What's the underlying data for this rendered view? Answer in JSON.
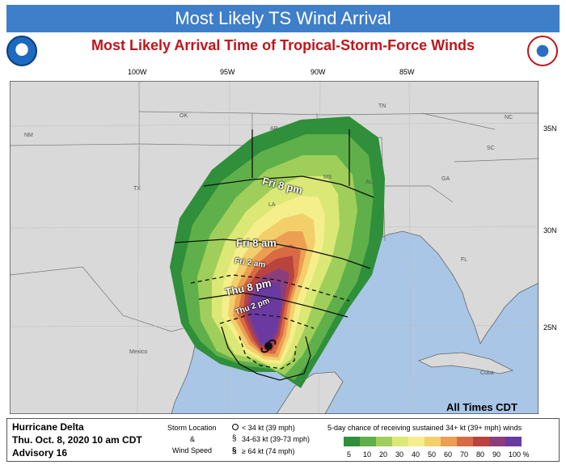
{
  "banner_title": "Most Likely TS Wind Arrival",
  "subtitle": "Most Likely Arrival Time of Tropical-Storm-Force Winds",
  "longitudes": [
    "100W",
    "95W",
    "90W",
    "85W"
  ],
  "latitudes": [
    "35N",
    "30N",
    "25N"
  ],
  "states": [
    "NM",
    "TX",
    "OK",
    "AR",
    "LA",
    "MS",
    "AL",
    "TN",
    "GA",
    "SC",
    "NC",
    "FL"
  ],
  "places": [
    "Mexico",
    "Cuba"
  ],
  "contour_labels": {
    "fri_8pm": "Fri 8 pm",
    "fri_8am": "Fri 8 am",
    "fri_2am": "Fri 2 am",
    "thu_8pm": "Thu 8 pm",
    "thu_2pm": "Thu 2 pm"
  },
  "all_times": "All Times CDT",
  "storm_info": {
    "name": "Hurricane Delta",
    "datetime": "Thu. Oct. 8, 2020  10 am CDT",
    "advisory": "Advisory 16"
  },
  "storm_legend": {
    "label1": "Storm Location",
    "label2": "&",
    "label3": "Wind Speed",
    "items": [
      "< 34 kt (39 mph)",
      "34-63 kt (39-73 mph)",
      "≥ 64 kt (74 mph)"
    ]
  },
  "chance_title": "5-day chance of receiving sustained 34+ kt (39+ mph) winds",
  "chance_scale": [
    "5",
    "10",
    "20",
    "30",
    "40",
    "50",
    "60",
    "70",
    "80",
    "90",
    "100 %"
  ],
  "colors": {
    "banner": "#3f7fc9",
    "subtitle": "#c0141a",
    "land": "#d9d9d9",
    "water": "#a9c6e6",
    "scale": [
      "#2f8f3a",
      "#5fb04a",
      "#9fcf5a",
      "#dbe876",
      "#f4ef8a",
      "#f3cf6c",
      "#ec9f52",
      "#d86b44",
      "#b8433f",
      "#8b3e7c",
      "#6a3aa0"
    ]
  }
}
